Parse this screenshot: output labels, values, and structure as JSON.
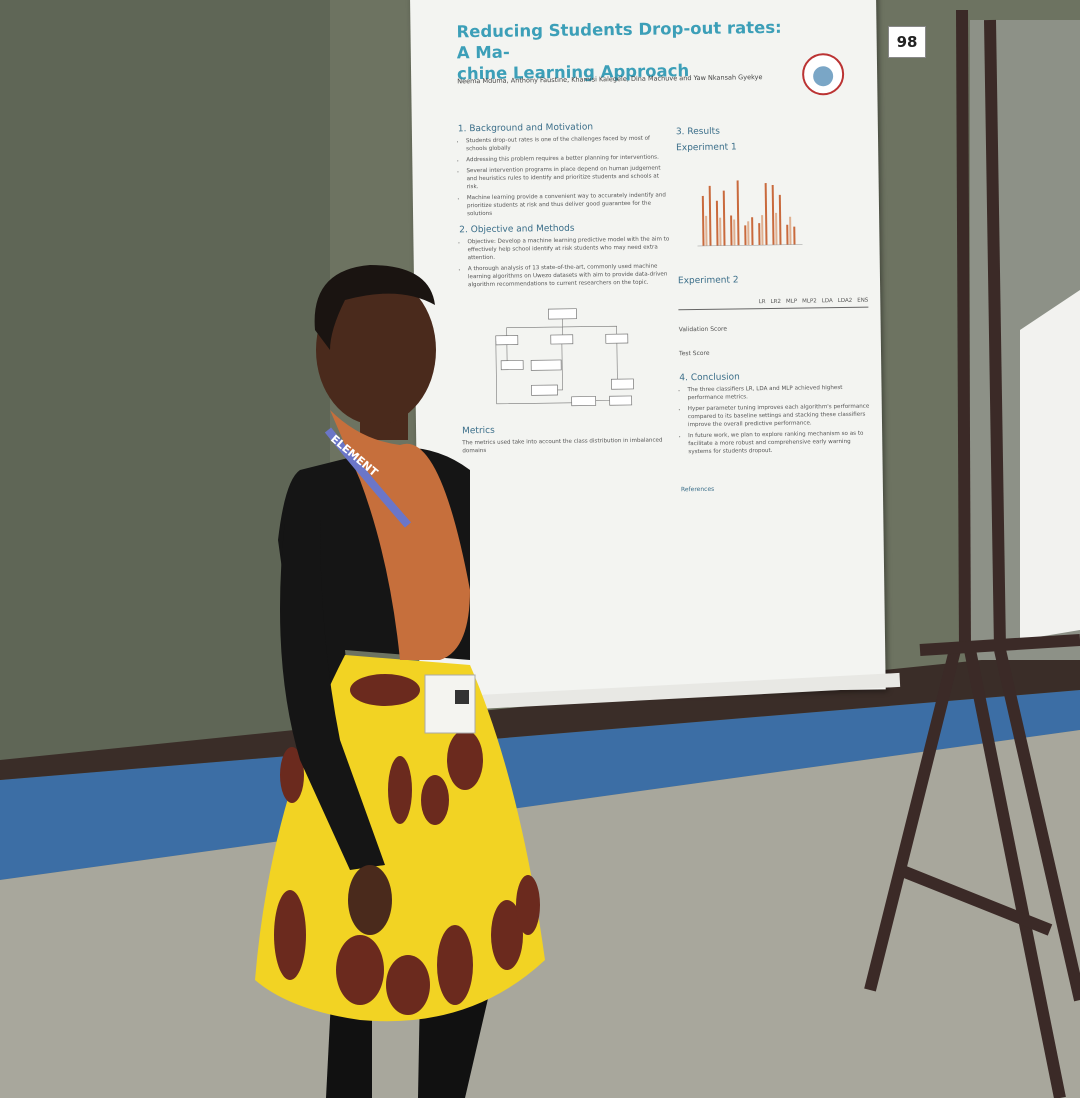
{
  "board_number": "98",
  "poster": {
    "title_lines": [
      "Reducing Students Drop-out rates: A Ma-",
      "chine Learning Approach"
    ],
    "authors": "Neema Mduma, Anthony Faustine, Khamisi Kalegele, Dina Machuve and Yaw Nkansah Gyekye",
    "sections": [
      {
        "heading": "1. Background and Motivation",
        "bullets": [
          "Students drop-out rates is one of the challenges faced by most of schools globally",
          "Addressing this problem requires a better planning for interventions.",
          "Several intervention programs in place depend on human judgement and heuristics rules to identify and prioritize students and schools at risk.",
          "Machine learning provide a convenient way to accurately indentify and prioritize students at risk and thus deliver good guarantee for the solutions"
        ]
      },
      {
        "heading": "2. Objective and Methods",
        "bullets": [
          "Objective: Develop a machine learning predictive model with the aim to effectively help school identify at risk students who may need extra attention.",
          "A thorough analysis of 13 state-of-the-art, commonly used machine learning algorithms on Uwezo datasets with aim to provide data-driven algorithm recommendations to current researchers on the topic."
        ]
      },
      {
        "heading": "Metrics",
        "bullets": [
          "The metrics used take into account the class distribution in imbalanced domains"
        ]
      },
      {
        "heading": "3. Results",
        "bullets": []
      },
      {
        "heading": "Experiment 1",
        "bullets": []
      },
      {
        "heading": "Experiment 2",
        "bullets": []
      },
      {
        "heading": "4. Conclusion",
        "bullets": [
          "The three classifiers LR, LDA and MLP achieved highest performance metrics.",
          "Hyper parameter tuning improves each algorithm's performance compared to its baseline settings and stacking these classifiers improve the overall predictive performance.",
          "In future work, we plan to explore ranking mechanism so as to facilitate a more robust and comprehensive early warning systems for students dropout."
        ]
      },
      {
        "heading": "References",
        "bullets": []
      }
    ],
    "table": {
      "columns": [
        "LR",
        "LR2",
        "MLP",
        "MLP2",
        "LDA",
        "LDA2",
        "ENS"
      ],
      "row_groups": [
        "Validation Score",
        "Test Score"
      ]
    }
  },
  "lanyard": "ELEMENT"
}
